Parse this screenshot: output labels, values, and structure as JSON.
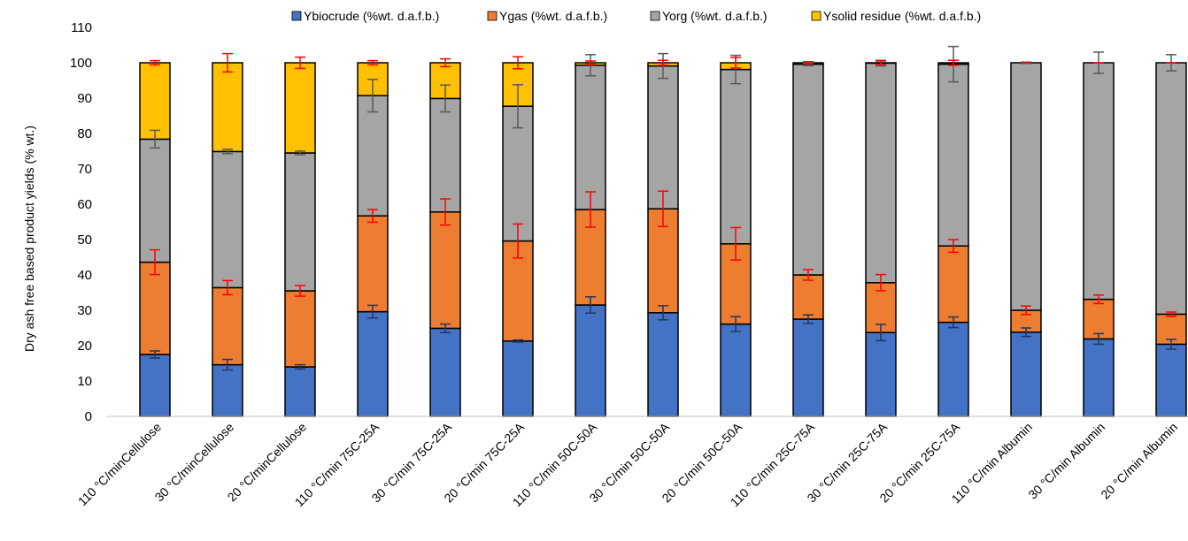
{
  "chart_data": {
    "type": "bar",
    "stacked": true,
    "title": "",
    "xlabel": "",
    "ylabel": "Dry ash free based product yields (% wt.)",
    "ylim": [
      0,
      110
    ],
    "yticks": [
      0,
      10,
      20,
      30,
      40,
      50,
      60,
      70,
      80,
      90,
      100,
      110
    ],
    "legend_position": "top",
    "grid": false,
    "categories": [
      "110 °C/minCellulose",
      "30 °C/minCellulose",
      "20 °C/minCellulose",
      "110 °C/min 75C-25A",
      "30 °C/min 75C-25A",
      "20 °C/min 75C-25A",
      "110 °C/min 50C-50A",
      "30 °C/min 50C-50A",
      "20 °C/min 50C-50A",
      "110 °C/min 25C-75A",
      "30 °C/min 25C-75A",
      "20 °C/min 25C-75A",
      "110 °C/min Albumin",
      "30 °C/min Albumin",
      "20 °C/min Albumin"
    ],
    "series": [
      {
        "name": "Ybiocrude (%wt. d.a.f.b.)",
        "color": "#4472C4",
        "errcolor": "#1F3864",
        "values": [
          17.5,
          14.6,
          14.0,
          29.6,
          24.9,
          21.3,
          31.5,
          29.3,
          26.1,
          27.5,
          23.7,
          26.6,
          23.8,
          21.9,
          20.4
        ],
        "errors": [
          1.0,
          1.5,
          0.6,
          1.8,
          1.2,
          0.3,
          2.3,
          2.0,
          2.1,
          1.2,
          2.3,
          1.5,
          1.2,
          1.5,
          1.4
        ]
      },
      {
        "name": "Ygas (%wt. d.a.f.b.)",
        "color": "#ED7D31",
        "errcolor": "#FF0000",
        "values": [
          26.1,
          21.8,
          21.5,
          27.1,
          32.9,
          28.3,
          27.0,
          29.4,
          22.7,
          12.5,
          14.1,
          21.6,
          6.2,
          11.2,
          8.5
        ],
        "errors": [
          3.5,
          2.0,
          1.5,
          1.8,
          3.7,
          4.8,
          5.0,
          5.0,
          4.6,
          1.5,
          2.3,
          1.8,
          1.2,
          1.2,
          0.6
        ]
      },
      {
        "name": "Yorg (%wt. d.a.f.b.)",
        "color": "#A5A5A5",
        "errcolor": "#595959",
        "values": [
          34.8,
          38.5,
          39.0,
          34.0,
          32.1,
          38.1,
          40.8,
          40.4,
          49.3,
          59.6,
          62.1,
          51.4,
          70.0,
          66.9,
          71.1
        ],
        "errors": [
          2.5,
          0.6,
          0.5,
          4.6,
          3.8,
          6.1,
          3.0,
          3.5,
          4.0,
          0.4,
          0.8,
          5.0,
          0.2,
          3.0,
          2.3
        ]
      },
      {
        "name": "Ysolid residue (%wt. d.a.f.b.)",
        "color": "#FFC000",
        "errcolor": "#FF0000",
        "values": [
          21.6,
          25.1,
          25.5,
          9.3,
          10.1,
          12.3,
          0.7,
          0.9,
          1.9,
          0.4,
          0.1,
          0.4,
          0.0,
          0.0,
          0.0
        ],
        "errors": [
          0.6,
          2.6,
          1.6,
          0.6,
          1.1,
          1.7,
          0.5,
          0.7,
          1.5,
          0.3,
          0.5,
          0.7,
          0.0,
          0.0,
          0.0
        ]
      }
    ]
  }
}
